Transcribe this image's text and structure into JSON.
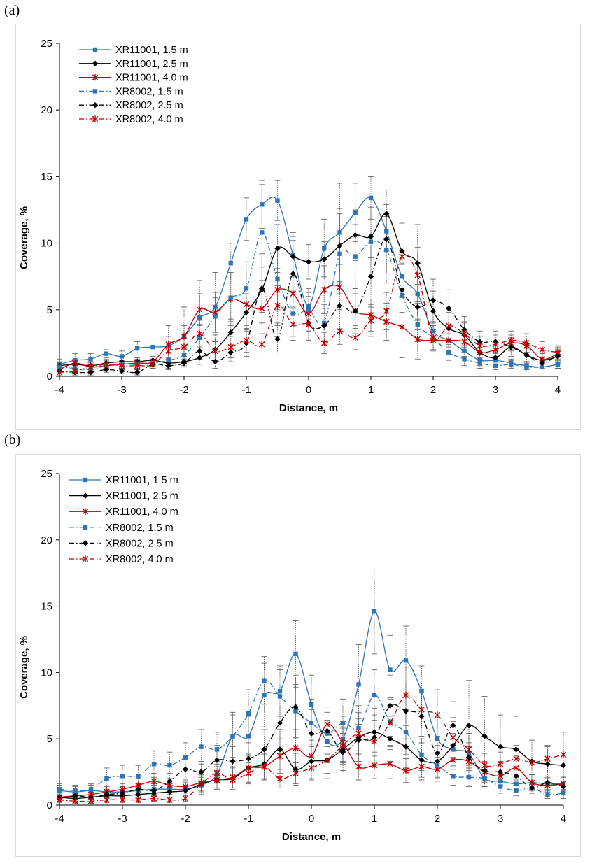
{
  "panels": [
    {
      "label": "(a)"
    },
    {
      "label": "(b)"
    }
  ],
  "chart_data": [
    {
      "type": "line",
      "xlabel": "Distance, m",
      "ylabel": "Coverage, %",
      "xlim": [
        -4,
        4
      ],
      "ylim": [
        0,
        25
      ],
      "xticks": [
        -4,
        -3,
        -2,
        -1,
        0,
        1,
        2,
        3,
        4
      ],
      "yticks": [
        0,
        5,
        10,
        15,
        20,
        25
      ],
      "x_tick_labels": [
        "-4",
        "-3",
        "-2",
        "-1",
        "0",
        "1",
        "2",
        "3",
        "4"
      ],
      "y_tick_labels": [
        "0",
        "5",
        "10",
        "15",
        "20",
        "25"
      ],
      "legend_position": "top-left",
      "x": [
        -4,
        -3.75,
        -3.5,
        -3.25,
        -3,
        -2.75,
        -2.5,
        -2.25,
        -2,
        -1.75,
        -1.5,
        -1.25,
        -1,
        -0.75,
        -0.5,
        -0.25,
        0,
        0.25,
        0.5,
        0.75,
        1,
        1.25,
        1.5,
        1.75,
        2,
        2.25,
        2.5,
        2.75,
        3,
        3.25,
        3.5,
        3.75,
        4
      ],
      "series": [
        {
          "name": "XR11001, 1.5 m",
          "color": "#2e75b6",
          "dash": "solid",
          "marker": "square",
          "values": [
            0.9,
            1.2,
            1.3,
            1.7,
            1.5,
            2.1,
            2.2,
            2.3,
            3.0,
            4.4,
            5.2,
            8.5,
            11.8,
            12.9,
            13.2,
            9.1,
            5.3,
            9.6,
            10.8,
            12.3,
            13.4,
            10.9,
            7.5,
            6.2,
            3.4,
            2.7,
            1.9,
            1.2,
            1.2,
            1.0,
            0.8,
            0.7,
            0.9
          ],
          "errors": [
            0.4,
            0.5,
            0.4,
            0.3,
            0.4,
            0.5,
            0.6,
            1.5,
            2.2,
            2.8,
            2.6,
            1.5,
            1.6,
            1.8,
            1.5,
            1.7,
            1.0,
            2.2,
            3.7,
            2.2,
            1.6,
            1.5,
            1.6,
            2.0,
            0.6,
            0.5,
            0.4,
            0.4,
            0.4,
            0.3,
            0.3,
            0.3,
            0.3
          ]
        },
        {
          "name": "XR11001, 2.5 m",
          "color": "#000000",
          "dash": "solid",
          "marker": "diamond",
          "values": [
            0.8,
            0.9,
            0.8,
            1.0,
            1.1,
            1.1,
            1.2,
            1.0,
            1.1,
            1.4,
            2.0,
            3.3,
            4.8,
            6.5,
            9.6,
            9.0,
            8.6,
            8.8,
            9.8,
            10.6,
            10.5,
            12.2,
            9.4,
            8.5,
            4.9,
            3.6,
            3.1,
            1.8,
            1.4,
            2.2,
            1.6,
            1.2,
            1.5
          ],
          "errors": [
            0.3,
            0.3,
            0.3,
            0.3,
            0.4,
            0.3,
            0.4,
            0.4,
            0.4,
            0.5,
            0.8,
            1.0,
            1.4,
            1.7,
            1.8,
            1.5,
            1.3,
            1.3,
            2.8,
            1.9,
            1.6,
            1.8,
            4.6,
            2.9,
            1.5,
            1.0,
            0.9,
            0.6,
            0.5,
            0.6,
            0.5,
            0.5,
            0.5
          ]
        },
        {
          "name": "XR11001, 4.0 m",
          "color": "#c00000",
          "dash": "solid",
          "marker": "star",
          "values": [
            0.5,
            1.0,
            0.7,
            0.8,
            0.9,
            1.0,
            1.1,
            2.4,
            3.0,
            5.0,
            4.8,
            5.8,
            5.4,
            5.1,
            6.5,
            6.2,
            4.7,
            6.5,
            6.7,
            4.9,
            4.6,
            4.1,
            3.7,
            2.8,
            2.7,
            2.7,
            2.6,
            1.8,
            2.0,
            2.5,
            2.3,
            1.3,
            1.7
          ],
          "errors": [
            0.3,
            0.3,
            0.3,
            0.3,
            0.3,
            0.3,
            0.4,
            0.6,
            0.8,
            1.2,
            1.5,
            2.0,
            1.6,
            1.4,
            1.6,
            1.5,
            1.3,
            1.8,
            1.7,
            1.3,
            1.2,
            1.4,
            2.3,
            1.5,
            0.8,
            0.8,
            0.7,
            0.5,
            0.5,
            0.6,
            0.5,
            0.4,
            0.5
          ]
        },
        {
          "name": "XR8002, 1.5 m",
          "color": "#2e75b6",
          "dash": "dashdot",
          "marker": "square",
          "values": [
            0.7,
            0.6,
            0.5,
            0.8,
            0.9,
            0.9,
            1.0,
            1.2,
            1.6,
            2.9,
            4.5,
            5.9,
            6.6,
            10.8,
            7.3,
            4.7,
            5.0,
            4.0,
            9.2,
            9.0,
            10.1,
            9.5,
            6.1,
            3.9,
            2.9,
            1.8,
            1.3,
            1.0,
            0.8,
            0.9,
            0.7,
            0.7,
            0.9
          ],
          "errors": [
            0.3,
            0.3,
            0.3,
            0.3,
            0.3,
            0.3,
            0.3,
            0.4,
            0.6,
            1.0,
            1.4,
            1.8,
            2.0,
            3.6,
            2.3,
            1.7,
            1.6,
            1.4,
            3.0,
            2.4,
            2.6,
            2.5,
            2.4,
            1.3,
            0.9,
            0.6,
            0.5,
            0.4,
            0.3,
            0.3,
            0.3,
            0.3,
            0.3
          ]
        },
        {
          "name": "XR8002, 2.5 m",
          "color": "#000000",
          "dash": "dashdot",
          "marker": "diamond",
          "values": [
            0.4,
            0.3,
            0.3,
            0.5,
            0.4,
            0.3,
            0.9,
            0.8,
            1.0,
            1.9,
            1.1,
            1.8,
            2.5,
            6.6,
            2.8,
            7.7,
            4.0,
            3.8,
            5.3,
            4.9,
            7.5,
            10.3,
            6.5,
            5.2,
            5.7,
            5.1,
            3.5,
            2.6,
            2.6,
            2.2,
            1.6,
            1.0,
            1.6
          ],
          "errors": [
            0.2,
            0.2,
            0.2,
            0.2,
            0.2,
            0.2,
            0.3,
            0.3,
            0.3,
            0.6,
            0.5,
            0.7,
            1.0,
            2.6,
            1.2,
            2.5,
            1.3,
            1.3,
            1.8,
            1.7,
            2.3,
            2.6,
            1.9,
            1.7,
            1.6,
            1.4,
            1.0,
            0.8,
            0.8,
            0.7,
            0.5,
            0.4,
            0.5
          ]
        },
        {
          "name": "XR8002, 4.0 m",
          "color": "#c00000",
          "dash": "dashdot",
          "marker": "star",
          "values": [
            0.3,
            0.4,
            0.7,
            0.9,
            0.8,
            0.8,
            0.9,
            1.9,
            2.2,
            3.2,
            1.9,
            2.2,
            2.7,
            2.4,
            5.3,
            3.9,
            3.9,
            2.5,
            3.4,
            2.9,
            4.2,
            4.9,
            9.0,
            7.6,
            2.9,
            3.8,
            3.2,
            2.3,
            2.4,
            2.7,
            2.5,
            2.0,
            1.8
          ],
          "errors": [
            0.2,
            0.2,
            0.3,
            0.3,
            0.3,
            0.3,
            0.3,
            0.6,
            0.7,
            1.0,
            0.7,
            0.8,
            0.9,
            0.8,
            1.5,
            1.2,
            1.1,
            0.8,
            1.0,
            0.9,
            1.2,
            1.4,
            2.5,
            2.1,
            0.9,
            1.0,
            0.9,
            0.7,
            0.7,
            0.7,
            0.7,
            0.6,
            0.5
          ]
        }
      ]
    },
    {
      "type": "line",
      "xlabel": "Distance, m",
      "ylabel": "Coverage, %",
      "xlim": [
        -4,
        4
      ],
      "ylim": [
        0,
        25
      ],
      "xticks": [
        -4,
        -3,
        -2,
        -1,
        0,
        1,
        2,
        3,
        4
      ],
      "yticks": [
        0,
        5,
        10,
        15,
        20,
        25
      ],
      "x_tick_labels": [
        "-4",
        "-3",
        "-2",
        "-1",
        "0",
        "1",
        "2",
        "3",
        "4"
      ],
      "y_tick_labels": [
        "0",
        "5",
        "10",
        "15",
        "20",
        "25"
      ],
      "legend_position": "top-left",
      "x": [
        -4,
        -3.75,
        -3.5,
        -3.25,
        -3,
        -2.75,
        -2.5,
        -2.25,
        -2,
        -1.75,
        -1.5,
        -1.25,
        -1,
        -0.75,
        -0.5,
        -0.25,
        0,
        0.25,
        0.5,
        0.75,
        1,
        1.25,
        1.5,
        1.75,
        2,
        2.25,
        2.5,
        2.75,
        3,
        3.25,
        3.5,
        3.75,
        4
      ],
      "series": [
        {
          "name": "XR11001, 1.5 m",
          "color": "#2e75b6",
          "dash": "solid",
          "marker": "square",
          "values": [
            1.1,
            1.0,
            1.1,
            1.0,
            1.0,
            1.1,
            1.2,
            1.2,
            1.2,
            1.5,
            2.3,
            5.2,
            5.2,
            8.3,
            8.6,
            11.4,
            7.6,
            4.8,
            5.0,
            9.1,
            14.6,
            10.2,
            10.9,
            8.6,
            5.0,
            4.2,
            3.9,
            2.0,
            1.8,
            1.6,
            1.7,
            1.6,
            1.6
          ],
          "errors": [
            0.4,
            0.4,
            0.4,
            0.4,
            0.4,
            0.4,
            0.4,
            0.4,
            0.5,
            0.7,
            1.0,
            1.8,
            1.5,
            2.4,
            1.9,
            2.5,
            2.2,
            1.6,
            1.7,
            3.0,
            3.2,
            2.6,
            2.6,
            1.9,
            1.6,
            1.2,
            1.1,
            0.6,
            0.5,
            0.5,
            0.5,
            0.5,
            0.5
          ]
        },
        {
          "name": "XR11001, 2.5 m",
          "color": "#000000",
          "dash": "solid",
          "marker": "diamond",
          "values": [
            0.6,
            0.5,
            0.6,
            0.7,
            0.7,
            0.8,
            0.9,
            1.0,
            1.1,
            1.6,
            1.9,
            2.0,
            2.8,
            3.1,
            4.2,
            2.7,
            3.3,
            3.4,
            4.2,
            5.1,
            5.5,
            5.0,
            4.4,
            3.4,
            3.3,
            4.5,
            6.0,
            5.2,
            4.4,
            4.2,
            3.3,
            3.1,
            3.0
          ],
          "errors": [
            0.3,
            0.3,
            0.3,
            0.3,
            0.3,
            0.3,
            0.3,
            0.4,
            0.4,
            0.6,
            0.7,
            0.8,
            1.1,
            1.2,
            1.5,
            1.2,
            1.3,
            1.4,
            1.7,
            1.8,
            1.8,
            1.7,
            1.6,
            1.3,
            1.2,
            1.8,
            3.4,
            3.0,
            2.4,
            2.5,
            1.6,
            1.3,
            2.5
          ]
        },
        {
          "name": "XR11001, 4.0 m",
          "color": "#c00000",
          "dash": "solid",
          "marker": "star",
          "values": [
            0.6,
            0.7,
            0.8,
            1.0,
            1.2,
            1.5,
            1.8,
            1.5,
            1.4,
            1.7,
            1.9,
            2.1,
            2.8,
            2.9,
            3.7,
            4.3,
            3.7,
            6.1,
            4.7,
            2.9,
            3.0,
            3.1,
            2.6,
            2.9,
            2.7,
            3.4,
            3.3,
            2.5,
            2.2,
            2.8,
            1.7,
            1.5,
            1.6
          ],
          "errors": [
            0.2,
            0.2,
            0.3,
            0.3,
            0.4,
            0.5,
            0.6,
            0.5,
            0.5,
            0.6,
            0.7,
            0.8,
            1.0,
            1.0,
            1.3,
            1.4,
            1.2,
            2.2,
            1.6,
            1.0,
            1.0,
            1.1,
            0.9,
            1.0,
            0.9,
            1.1,
            1.1,
            0.8,
            0.7,
            0.9,
            0.6,
            0.5,
            0.5
          ]
        },
        {
          "name": "XR8002, 1.5 m",
          "color": "#2e75b6",
          "dash": "dashdot",
          "marker": "square",
          "values": [
            1.2,
            1.1,
            1.2,
            2.0,
            2.2,
            2.2,
            3.1,
            3.0,
            3.6,
            4.4,
            4.2,
            5.2,
            6.9,
            9.4,
            8.2,
            7.1,
            6.2,
            5.4,
            6.2,
            5.8,
            8.3,
            6.3,
            5.5,
            3.8,
            3.0,
            2.2,
            2.1,
            2.0,
            1.4,
            1.1,
            1.3,
            0.8,
            0.9
          ],
          "errors": [
            0.4,
            0.4,
            0.4,
            0.8,
            0.8,
            0.8,
            1.0,
            1.0,
            1.1,
            1.3,
            1.3,
            1.6,
            1.8,
            1.8,
            2.0,
            2.0,
            1.8,
            1.6,
            1.8,
            1.7,
            1.9,
            1.8,
            1.7,
            1.2,
            1.0,
            0.7,
            0.7,
            0.6,
            0.5,
            0.4,
            0.4,
            0.3,
            0.3
          ]
        },
        {
          "name": "XR8002, 2.5 m",
          "color": "#000000",
          "dash": "dashdot",
          "marker": "diamond",
          "values": [
            0.5,
            0.7,
            0.6,
            0.8,
            0.9,
            1.2,
            1.1,
            1.8,
            2.7,
            2.5,
            3.4,
            3.3,
            3.5,
            4.2,
            6.2,
            7.4,
            5.4,
            5.6,
            4.0,
            4.9,
            5.1,
            7.5,
            7.1,
            6.7,
            3.9,
            6.0,
            3.6,
            2.6,
            2.5,
            2.2,
            1.3,
            1.7,
            1.4
          ],
          "errors": [
            0.2,
            0.3,
            0.2,
            0.3,
            0.3,
            0.4,
            0.4,
            0.6,
            0.9,
            0.8,
            1.1,
            1.1,
            1.2,
            1.5,
            2.1,
            2.4,
            1.8,
            1.8,
            1.4,
            1.6,
            1.7,
            2.3,
            2.1,
            2.0,
            1.3,
            1.8,
            1.1,
            0.8,
            0.8,
            0.7,
            0.4,
            0.5,
            0.4
          ]
        },
        {
          "name": "XR8002, 4.0 m",
          "color": "#c00000",
          "dash": "dashdot",
          "marker": "star",
          "values": [
            0.4,
            0.3,
            0.3,
            0.4,
            0.4,
            0.4,
            0.5,
            0.4,
            0.5,
            1.6,
            2.4,
            1.9,
            2.4,
            2.9,
            2.0,
            2.4,
            2.8,
            3.4,
            4.5,
            5.4,
            4.8,
            6.2,
            8.3,
            7.2,
            6.8,
            5.1,
            4.2,
            3.0,
            3.1,
            3.5,
            3.2,
            3.5,
            3.8
          ],
          "errors": [
            0.2,
            0.2,
            0.2,
            0.2,
            0.2,
            0.2,
            0.2,
            0.2,
            0.2,
            0.5,
            0.7,
            0.6,
            0.8,
            0.9,
            0.7,
            0.8,
            0.9,
            1.0,
            1.3,
            1.6,
            1.4,
            1.8,
            2.1,
            2.0,
            1.9,
            1.5,
            1.2,
            0.9,
            0.9,
            1.0,
            0.9,
            1.0,
            1.7
          ]
        }
      ]
    }
  ]
}
